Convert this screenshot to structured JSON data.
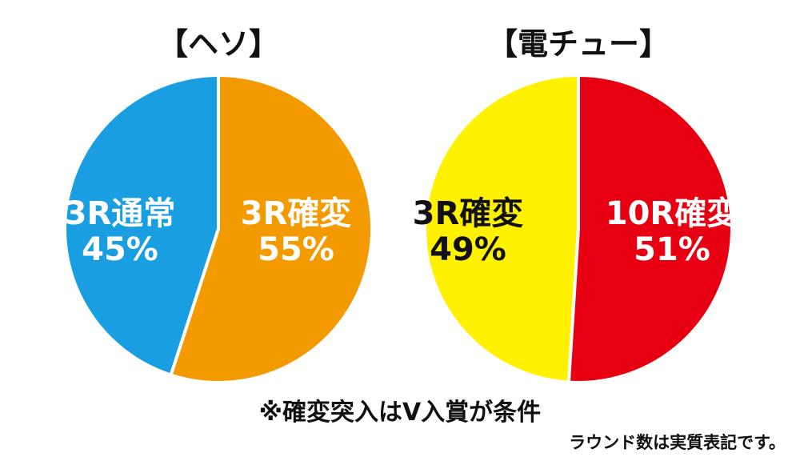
{
  "chart_data": [
    {
      "type": "pie",
      "title": "【ヘソ】",
      "slices": [
        {
          "line1": "3R通常",
          "line2": "45%",
          "value": 45,
          "color": "#1a9ee2",
          "text_color": "#ffffff",
          "outline_color": "#1a9ee2"
        },
        {
          "line1": "3R確変",
          "line2": "55%",
          "value": 55,
          "color": "#f39a00",
          "text_color": "#ffffff",
          "outline_color": "#f39a00"
        }
      ]
    },
    {
      "type": "pie",
      "title": "【電チュー】",
      "slices": [
        {
          "line1": "3R確変",
          "line2": "49%",
          "value": 49,
          "color": "#fff100",
          "text_color": "#111111",
          "outline_color": "#fff100"
        },
        {
          "line1": "10R確変",
          "line2": "51%",
          "value": 51,
          "color": "#e60012",
          "text_color": "#ffffff",
          "outline_color": "#e60012"
        }
      ]
    }
  ],
  "notes": {
    "main": "※確変突入はV入賞が条件",
    "sub": "ラウンド数は実質表記です。"
  }
}
